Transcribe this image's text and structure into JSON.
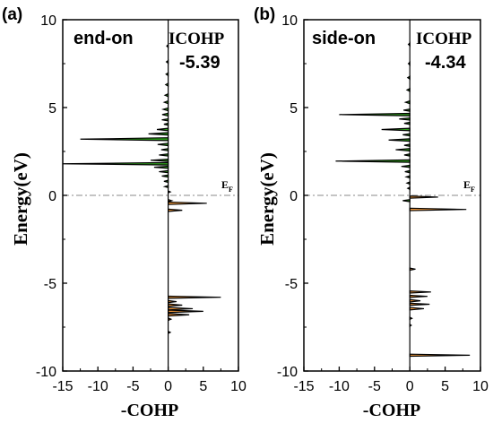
{
  "colors": {
    "positive": "#2e9e1b",
    "negative": "#f39a3c",
    "outline": "#000000",
    "fermi_line": "#8a8a8a"
  },
  "chart_data": [
    {
      "type": "area",
      "panel_label": "(a)",
      "title": "end-on",
      "icohp_label": "ICOHP",
      "icohp_value": "-5.39",
      "xlabel": "-COHP",
      "ylabel": "Energy(eV)",
      "fermi_label": "E",
      "fermi_sub": "F",
      "xlim": [
        -15,
        10
      ],
      "ylim": [
        -10,
        10
      ],
      "xticks": [
        -15,
        -10,
        -5,
        0,
        5,
        10
      ],
      "yticks": [
        -10,
        -5,
        0,
        5,
        10
      ],
      "fermi_level": 0,
      "peaks": [
        {
          "e": 8.5,
          "v": -0.2,
          "w": 0.08
        },
        {
          "e": 7.6,
          "v": -0.25,
          "w": 0.08
        },
        {
          "e": 6.9,
          "v": -0.3,
          "w": 0.08
        },
        {
          "e": 6.3,
          "v": -0.35,
          "w": 0.08
        },
        {
          "e": 5.7,
          "v": -0.45,
          "w": 0.08
        },
        {
          "e": 5.3,
          "v": -0.55,
          "w": 0.08
        },
        {
          "e": 4.9,
          "v": -0.7,
          "w": 0.08
        },
        {
          "e": 4.6,
          "v": -0.85,
          "w": 0.08
        },
        {
          "e": 4.3,
          "v": -0.9,
          "w": 0.06
        },
        {
          "e": 4.05,
          "v": -0.6,
          "w": 0.06
        },
        {
          "e": 3.75,
          "v": -1.6,
          "w": 0.07
        },
        {
          "e": 3.5,
          "v": -2.8,
          "w": 0.07
        },
        {
          "e": 3.2,
          "v": -12.5,
          "w": 0.08
        },
        {
          "e": 2.9,
          "v": -1.5,
          "w": 0.07
        },
        {
          "e": 2.6,
          "v": -1.0,
          "w": 0.06
        },
        {
          "e": 2.3,
          "v": -1.3,
          "w": 0.06
        },
        {
          "e": 2.0,
          "v": -2.5,
          "w": 0.06
        },
        {
          "e": 1.8,
          "v": -15.0,
          "w": 0.07
        },
        {
          "e": 1.6,
          "v": -2.0,
          "w": 0.06
        },
        {
          "e": 1.35,
          "v": -1.3,
          "w": 0.06
        },
        {
          "e": 1.1,
          "v": -0.9,
          "w": 0.06
        },
        {
          "e": 0.8,
          "v": -0.6,
          "w": 0.06
        },
        {
          "e": 0.5,
          "v": -0.5,
          "w": 0.06
        },
        {
          "e": 0.2,
          "v": 0.3,
          "w": 0.05
        },
        {
          "e": -0.3,
          "v": 0.5,
          "w": 0.06
        },
        {
          "e": -0.45,
          "v": 5.5,
          "w": 0.07
        },
        {
          "e": -0.85,
          "v": 2.0,
          "w": 0.07
        },
        {
          "e": -5.8,
          "v": 7.5,
          "w": 0.06
        },
        {
          "e": -6.05,
          "v": 1.2,
          "w": 0.06
        },
        {
          "e": -6.25,
          "v": 2.0,
          "w": 0.07
        },
        {
          "e": -6.45,
          "v": 3.5,
          "w": 0.07
        },
        {
          "e": -6.6,
          "v": 5.0,
          "w": 0.07
        },
        {
          "e": -6.8,
          "v": 3.0,
          "w": 0.07
        },
        {
          "e": -7.05,
          "v": 0.4,
          "w": 0.07
        },
        {
          "e": -7.8,
          "v": 0.3,
          "w": 0.06
        }
      ]
    },
    {
      "type": "area",
      "panel_label": "(b)",
      "title": "side-on",
      "icohp_label": "ICOHP",
      "icohp_value": "-4.34",
      "xlabel": "-COHP",
      "ylabel": "Energy(eV)",
      "fermi_label": "E",
      "fermi_sub": "F",
      "xlim": [
        -15,
        10
      ],
      "ylim": [
        -10,
        10
      ],
      "xticks": [
        -15,
        -10,
        -5,
        0,
        5,
        10
      ],
      "yticks": [
        -10,
        -5,
        0,
        5,
        10
      ],
      "fermi_level": 0,
      "peaks": [
        {
          "e": 8.6,
          "v": -0.2,
          "w": 0.08
        },
        {
          "e": 7.5,
          "v": -0.2,
          "w": 0.08
        },
        {
          "e": 6.7,
          "v": -0.3,
          "w": 0.08
        },
        {
          "e": 6.0,
          "v": -0.4,
          "w": 0.08
        },
        {
          "e": 5.3,
          "v": -0.6,
          "w": 0.08
        },
        {
          "e": 4.85,
          "v": -0.9,
          "w": 0.06
        },
        {
          "e": 4.6,
          "v": -10.0,
          "w": 0.07
        },
        {
          "e": 4.35,
          "v": -1.5,
          "w": 0.06
        },
        {
          "e": 4.1,
          "v": -0.8,
          "w": 0.06
        },
        {
          "e": 3.75,
          "v": -4.0,
          "w": 0.07
        },
        {
          "e": 3.45,
          "v": -1.0,
          "w": 0.06
        },
        {
          "e": 3.15,
          "v": -3.0,
          "w": 0.07
        },
        {
          "e": 2.85,
          "v": -0.8,
          "w": 0.06
        },
        {
          "e": 2.6,
          "v": -2.0,
          "w": 0.07
        },
        {
          "e": 2.3,
          "v": -0.8,
          "w": 0.06
        },
        {
          "e": 1.95,
          "v": -10.5,
          "w": 0.07
        },
        {
          "e": 1.65,
          "v": -1.2,
          "w": 0.06
        },
        {
          "e": 1.35,
          "v": -0.7,
          "w": 0.06
        },
        {
          "e": 1.05,
          "v": -0.5,
          "w": 0.06
        },
        {
          "e": 0.7,
          "v": -0.4,
          "w": 0.06
        },
        {
          "e": 0.4,
          "v": -0.3,
          "w": 0.06
        },
        {
          "e": -0.1,
          "v": 4.0,
          "w": 0.06
        },
        {
          "e": -0.3,
          "v": -1.0,
          "w": 0.06
        },
        {
          "e": -0.8,
          "v": 8.0,
          "w": 0.07
        },
        {
          "e": -4.2,
          "v": 0.8,
          "w": 0.06
        },
        {
          "e": -5.5,
          "v": 3.0,
          "w": 0.06
        },
        {
          "e": -5.75,
          "v": 2.5,
          "w": 0.06
        },
        {
          "e": -6.0,
          "v": 1.5,
          "w": 0.07
        },
        {
          "e": -6.2,
          "v": 2.8,
          "w": 0.06
        },
        {
          "e": -6.45,
          "v": 2.0,
          "w": 0.07
        },
        {
          "e": -7.0,
          "v": 0.3,
          "w": 0.06
        },
        {
          "e": -7.4,
          "v": 0.2,
          "w": 0.06
        },
        {
          "e": -9.1,
          "v": 8.5,
          "w": 0.06
        }
      ]
    }
  ]
}
